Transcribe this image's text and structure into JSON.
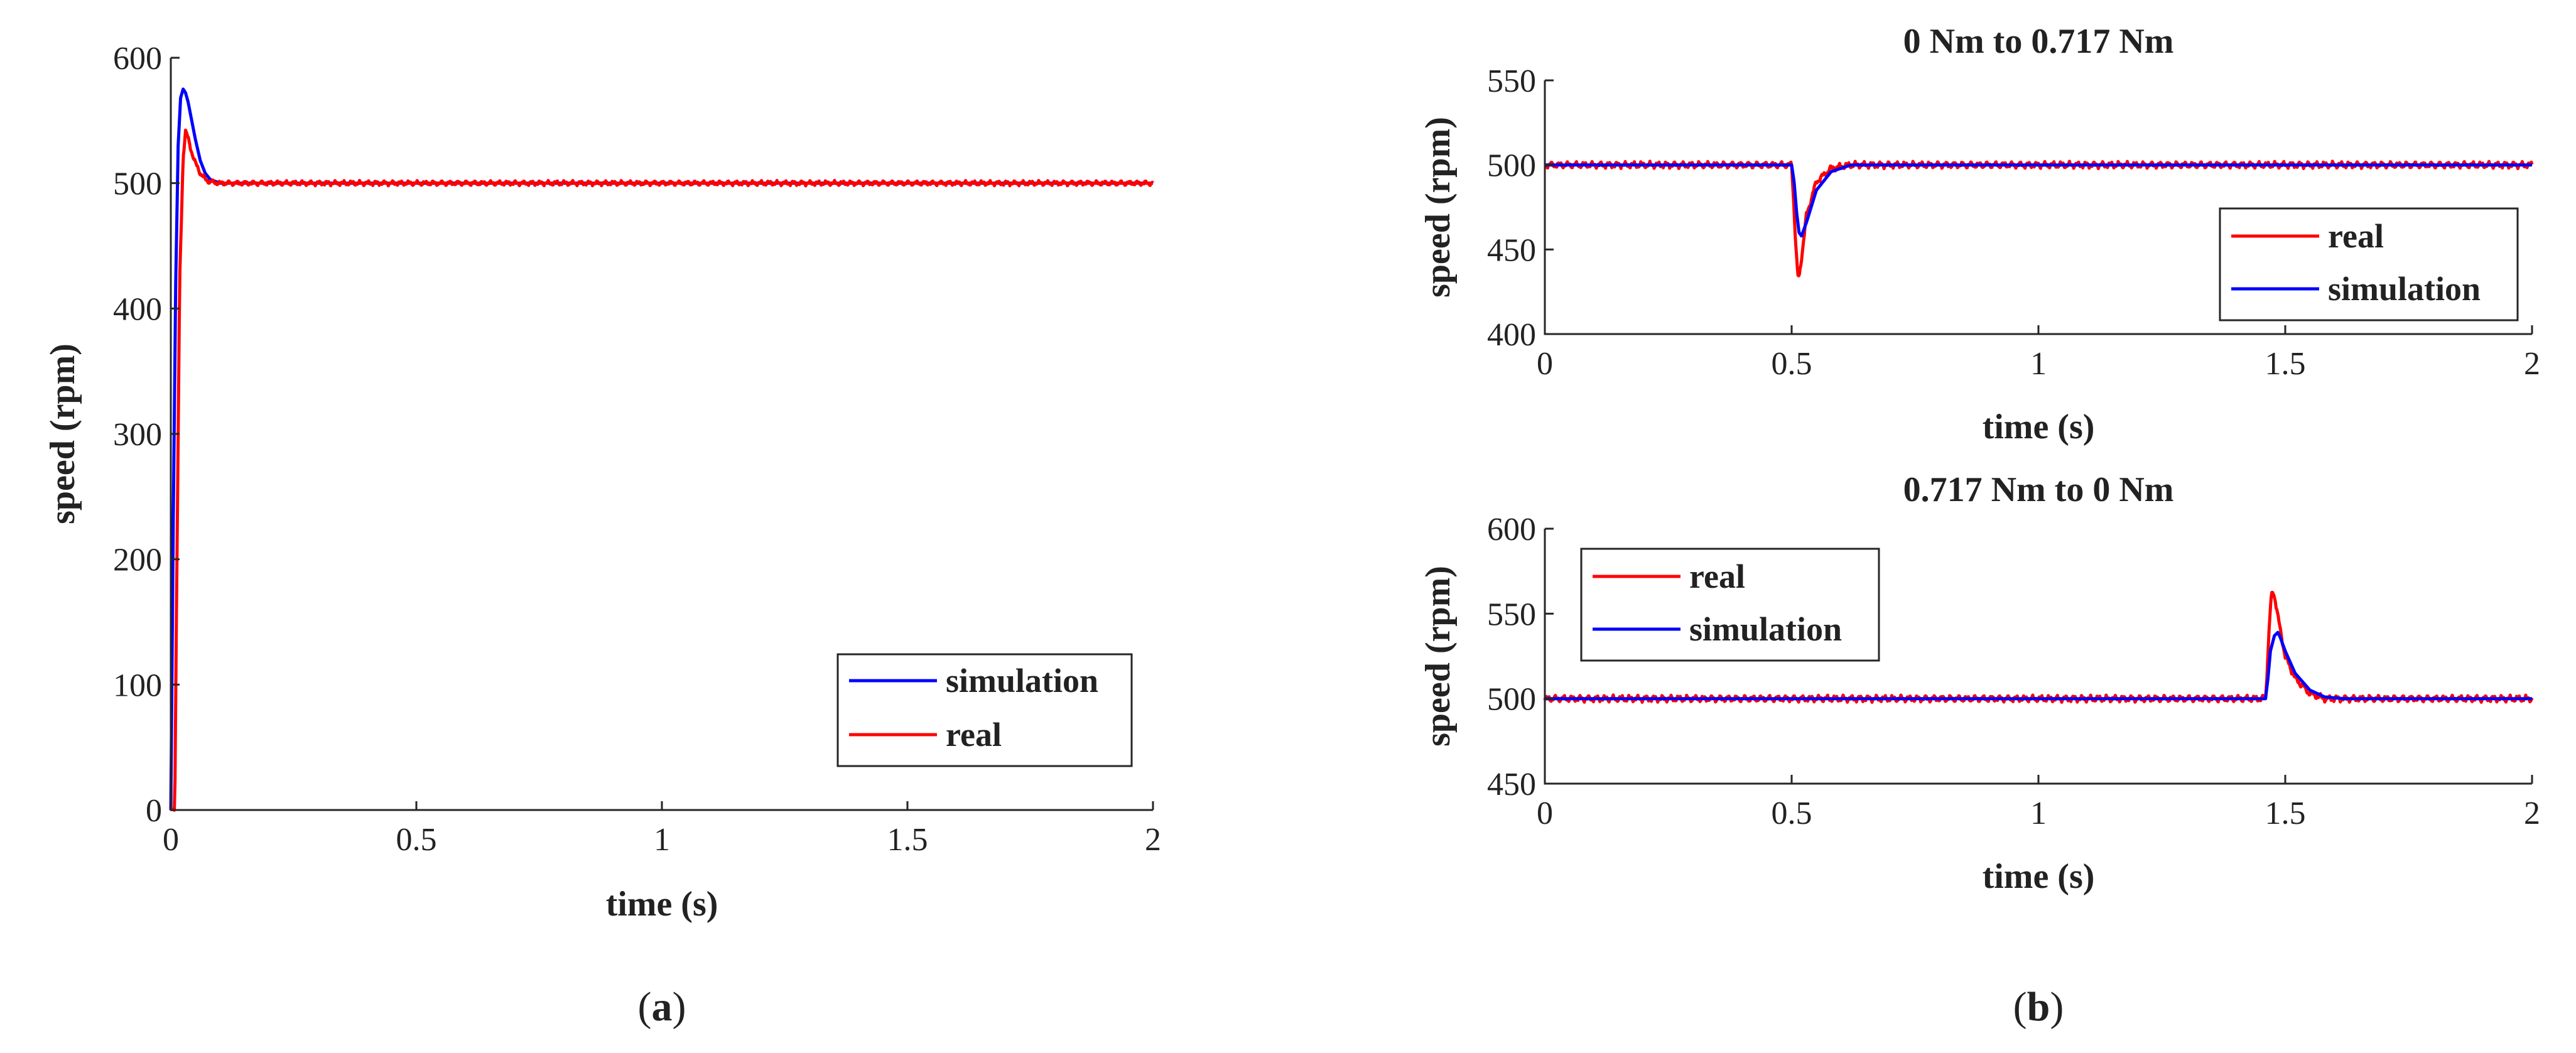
{
  "colors": {
    "real": "#ff0000",
    "simulation": "#0000ff",
    "axis": "#262626",
    "background": "#ffffff"
  },
  "panel_labels": {
    "a_open": "(",
    "a_letter": "a",
    "a_close": ")",
    "b_open": "(",
    "b_letter": "b",
    "b_close": ")"
  },
  "chart_data": [
    {
      "id": "a",
      "type": "line",
      "title": "",
      "xlabel": "time (s)",
      "ylabel": "speed (rpm)",
      "xlim": [
        0,
        2
      ],
      "ylim": [
        0,
        600
      ],
      "xticks": [
        0,
        0.5,
        1,
        1.5,
        2
      ],
      "xtick_labels": [
        "0",
        "0.5",
        "1",
        "1.5",
        "2"
      ],
      "yticks": [
        0,
        100,
        200,
        300,
        400,
        500,
        600
      ],
      "ytick_labels": [
        "0",
        "100",
        "200",
        "300",
        "400",
        "500",
        "600"
      ],
      "legend": {
        "position": "bottom-right",
        "entries": [
          "simulation",
          "real"
        ]
      },
      "series": [
        {
          "name": "simulation",
          "color": "#0000ff",
          "x": [
            0,
            0.005,
            0.01,
            0.015,
            0.02,
            0.025,
            0.03,
            0.035,
            0.04,
            0.05,
            0.06,
            0.07,
            0.08,
            0.1,
            0.12,
            0.15,
            0.2,
            2.0
          ],
          "y": [
            0,
            230,
            420,
            530,
            568,
            575,
            572,
            565,
            555,
            535,
            518,
            508,
            503,
            500,
            500,
            500,
            500,
            500
          ]
        },
        {
          "name": "real",
          "color": "#ff0000",
          "x": [
            0,
            0.008,
            0.012,
            0.018,
            0.025,
            0.03,
            0.035,
            0.04,
            0.05,
            0.06,
            0.07,
            0.08,
            0.1,
            0.12,
            0.15,
            0.2,
            2.0
          ],
          "y": [
            0,
            0,
            180,
            420,
            520,
            542,
            536,
            528,
            516,
            508,
            503,
            501,
            500,
            500,
            500,
            500,
            500
          ],
          "noise": 2.2
        }
      ]
    },
    {
      "id": "b-top",
      "type": "line",
      "title": "0 Nm to 0.717 Nm",
      "xlabel": "time (s)",
      "ylabel": "speed (rpm)",
      "xlim": [
        0,
        2
      ],
      "ylim": [
        400,
        550
      ],
      "xticks": [
        0,
        0.5,
        1,
        1.5,
        2
      ],
      "xtick_labels": [
        "0",
        "0.5",
        "1",
        "1.5",
        "2"
      ],
      "yticks": [
        400,
        450,
        500,
        550
      ],
      "ytick_labels": [
        "400",
        "450",
        "500",
        "550"
      ],
      "legend": {
        "position": "right",
        "entries": [
          "real",
          "simulation"
        ]
      },
      "series": [
        {
          "name": "real",
          "color": "#ff0000",
          "x": [
            0,
            0.5,
            0.503,
            0.508,
            0.512,
            0.515,
            0.52,
            0.53,
            0.55,
            0.58,
            0.62,
            0.7,
            2.0
          ],
          "y": [
            500,
            500,
            485,
            455,
            435,
            433,
            445,
            470,
            490,
            498,
            500,
            500,
            500
          ],
          "noise": 2.2
        },
        {
          "name": "simulation",
          "color": "#0000ff",
          "x": [
            0,
            0.5,
            0.505,
            0.51,
            0.515,
            0.52,
            0.53,
            0.55,
            0.58,
            0.62,
            0.7,
            2.0
          ],
          "y": [
            500,
            500,
            490,
            472,
            460,
            458,
            466,
            485,
            496,
            500,
            500,
            500
          ]
        }
      ]
    },
    {
      "id": "b-bottom",
      "type": "line",
      "title": "0.717 Nm to 0 Nm",
      "xlabel": "time (s)",
      "ylabel": "speed (rpm)",
      "xlim": [
        0,
        2
      ],
      "ylim": [
        450,
        600
      ],
      "xticks": [
        0,
        0.5,
        1,
        1.5,
        2
      ],
      "xtick_labels": [
        "0",
        "0.5",
        "1",
        "1.5",
        "2"
      ],
      "yticks": [
        450,
        500,
        550,
        600
      ],
      "ytick_labels": [
        "450",
        "500",
        "550",
        "600"
      ],
      "legend": {
        "position": "top-left",
        "entries": [
          "real",
          "simulation"
        ]
      },
      "series": [
        {
          "name": "real",
          "color": "#ff0000",
          "x": [
            0,
            1.46,
            1.463,
            1.468,
            1.472,
            1.475,
            1.48,
            1.49,
            1.5,
            1.52,
            1.55,
            1.58,
            1.62,
            2.0
          ],
          "y": [
            500,
            500,
            515,
            545,
            560,
            563,
            558,
            540,
            525,
            512,
            503,
            500,
            500,
            500
          ],
          "noise": 2.2
        },
        {
          "name": "simulation",
          "color": "#0000ff",
          "x": [
            0,
            1.46,
            1.465,
            1.47,
            1.478,
            1.485,
            1.49,
            1.5,
            1.52,
            1.55,
            1.58,
            1.62,
            2.0
          ],
          "y": [
            500,
            500,
            512,
            528,
            537,
            539,
            536,
            528,
            515,
            505,
            501,
            500,
            500
          ]
        }
      ]
    }
  ]
}
